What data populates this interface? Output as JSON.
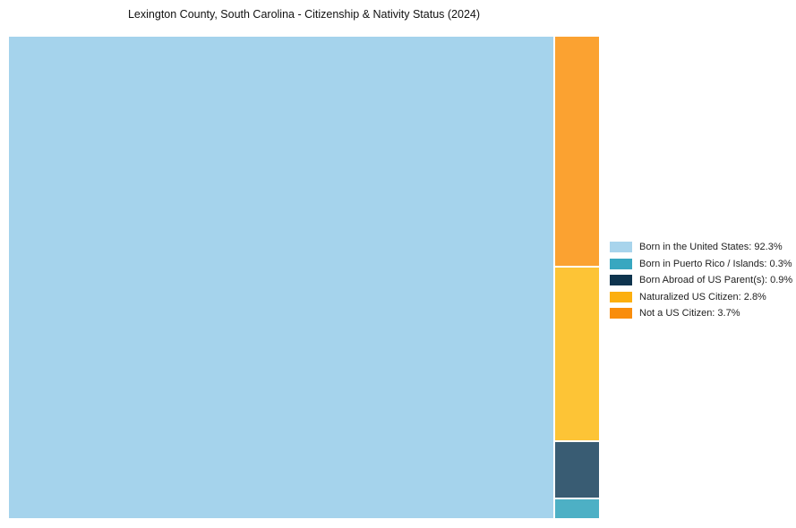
{
  "header": {
    "title": "Lexington County, South Carolina - Citizenship & Nativity Status (2024)"
  },
  "chart_data": {
    "type": "treemap",
    "title": "Lexington County, South Carolina - Citizenship & Nativity Status (2024)",
    "unit": "%",
    "total": 100,
    "legend_position": "right-middle",
    "layout_hint": "largest value fills left block full height; remaining values stacked in right column, descending top to bottom; white 2px padding between blocks; no axes, no gridlines",
    "series": [
      {
        "name": "Born in the United States",
        "value": 92.3,
        "block_color": "#A5D3EC",
        "legend_color": "#A8D4EC",
        "legend_label": "Born in the United States: 92.3%"
      },
      {
        "name": "Born in Puerto Rico / Islands",
        "value": 0.3,
        "block_color": "#4DB0C5",
        "legend_color": "#38A7C0",
        "legend_label": "Born in Puerto Rico / Islands: 0.3%"
      },
      {
        "name": "Born Abroad of US Parent(s)",
        "value": 0.9,
        "block_color": "#395C73",
        "legend_color": "#0E344E",
        "legend_label": "Born Abroad of US Parent(s): 0.9%"
      },
      {
        "name": "Naturalized US Citizen",
        "value": 2.8,
        "block_color": "#FDC436",
        "legend_color": "#FCAF0E",
        "legend_label": "Naturalized US Citizen: 2.8%"
      },
      {
        "name": "Not a US Citizen",
        "value": 3.7,
        "block_color": "#FBA231",
        "legend_color": "#F98D0C",
        "legend_label": "Not a US Citizen: 3.7%"
      }
    ]
  }
}
